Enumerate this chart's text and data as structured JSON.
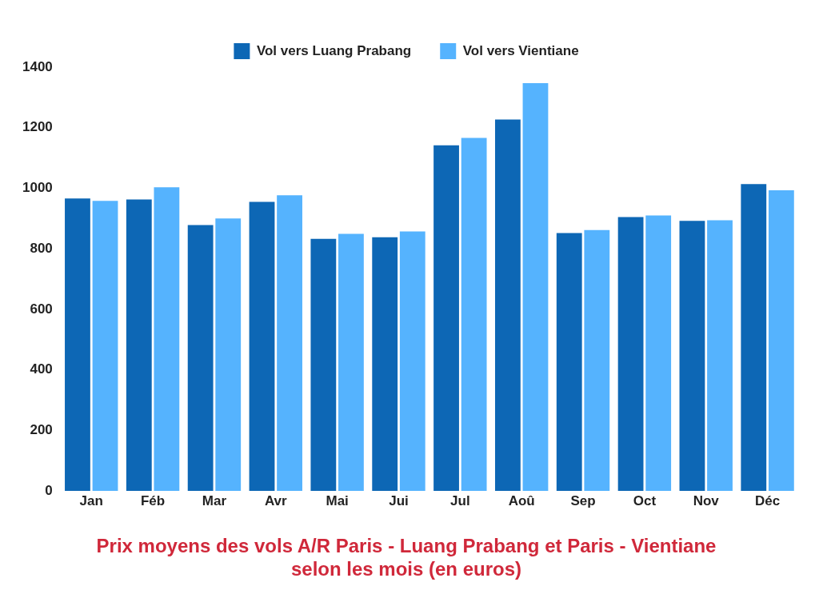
{
  "chart_data": {
    "type": "bar",
    "title": "Prix moyens des vols A/R Paris - Luang Prabang et Paris - Vientiane\nselon les mois (en euros)",
    "categories": [
      "Jan",
      "Féb",
      "Mar",
      "Avr",
      "Mai",
      "Jui",
      "Jul",
      "Aoû",
      "Sep",
      "Oct",
      "Nov",
      "Déc"
    ],
    "series": [
      {
        "name": "Vol vers Luang Prabang",
        "color": "#0d67b5",
        "values": [
          966,
          963,
          878,
          955,
          833,
          838,
          1142,
          1227,
          852,
          905,
          892,
          1014
        ]
      },
      {
        "name": "Vol vers Vientiane",
        "color": "#55b3fe",
        "values": [
          958,
          1003,
          900,
          977,
          849,
          857,
          1166,
          1347,
          862,
          910,
          894,
          993
        ]
      }
    ],
    "ylim": [
      0,
      1400
    ],
    "yticks": [
      0,
      200,
      400,
      600,
      800,
      1000,
      1200,
      1400
    ],
    "grid": false,
    "legend": "top"
  }
}
